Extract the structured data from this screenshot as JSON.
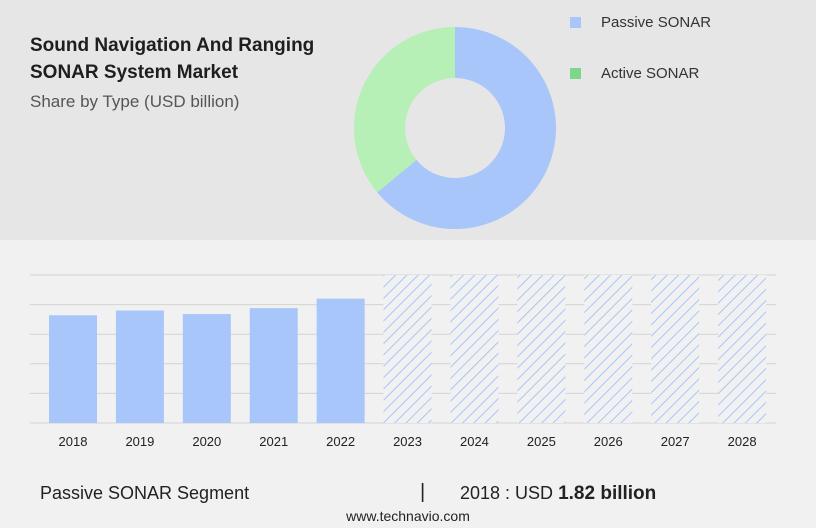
{
  "header": {
    "title": "Sound Navigation And Ranging SONAR System Market",
    "subtitle": "Share by Type (USD billion)"
  },
  "colors": {
    "passive": "#a8c6fa",
    "active": "#b6f0b6",
    "active_legend": "#7ed68a",
    "forecast_hatch": "#a8c6fa"
  },
  "chart_data": [
    {
      "type": "pie",
      "variant": "donut",
      "slices": [
        {
          "name": "Passive SONAR",
          "value": 64
        },
        {
          "name": "Active SONAR",
          "value": 36
        }
      ],
      "legend": "top-right"
    },
    {
      "type": "bar",
      "categories": [
        "2018",
        "2019",
        "2020",
        "2021",
        "2022",
        "2023",
        "2024",
        "2025",
        "2026",
        "2027",
        "2028"
      ],
      "values": [
        1.82,
        1.9,
        1.84,
        1.94,
        2.1,
        2.5,
        2.5,
        2.5,
        2.5,
        2.5,
        2.5
      ],
      "forecast_from_index": 5,
      "ylim": [
        0,
        2.5
      ],
      "grid": true
    }
  ],
  "footer": {
    "segment": "Passive SONAR Segment",
    "separator": "|",
    "year_prefix": "2018 : USD",
    "value": "1.82 billion",
    "source": "www.technavio.com"
  }
}
